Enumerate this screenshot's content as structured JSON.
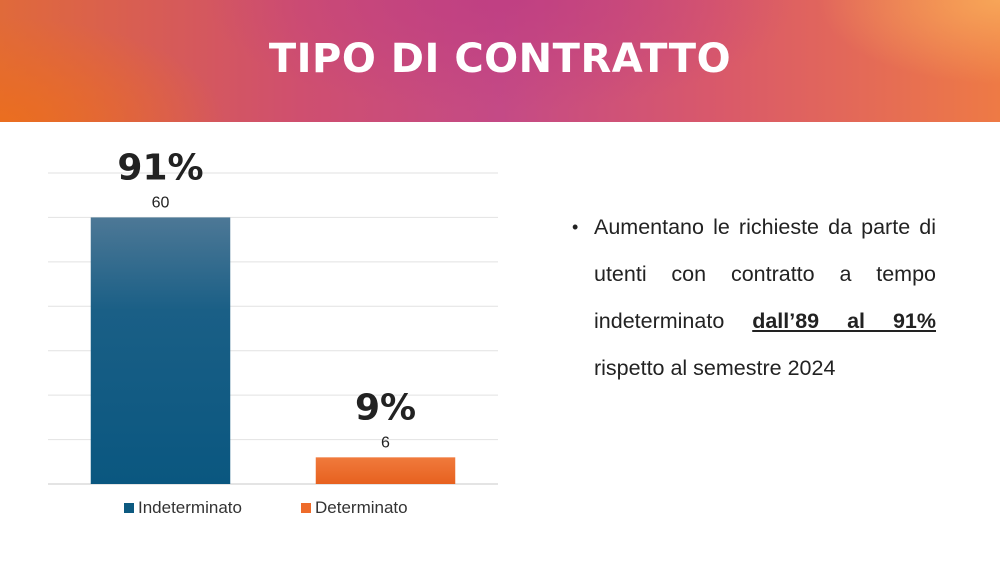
{
  "slide": {
    "title": "TIPO DI CONTRATTO"
  },
  "bullet": {
    "text_before": "Aumentano le richieste da parte di utenti con contratto a tempo indeterminato ",
    "highlight": "dall’89 al 91%",
    "text_after": " rispetto al semestre 2024"
  },
  "chart_data": {
    "type": "bar",
    "categories": [
      "Indeterminato",
      "Determinato"
    ],
    "values": [
      60,
      6
    ],
    "percent_labels": [
      "91%",
      "9%"
    ],
    "colors": [
      "#0d5a80",
      "#ee6b2a"
    ],
    "ylim": [
      0,
      70
    ],
    "grid": true,
    "legend": "bottom",
    "legend_entries": [
      "Indeterminato",
      "Determinato"
    ]
  }
}
